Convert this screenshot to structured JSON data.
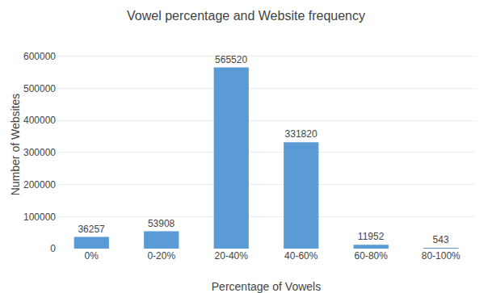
{
  "chart_data": {
    "type": "bar",
    "title": "Vowel percentage and Website frequency",
    "xlabel": "Percentage of Vowels",
    "ylabel": "Number of Websites",
    "categories": [
      "0%",
      "0-20%",
      "20-40%",
      "40-60%",
      "60-80%",
      "80-100%"
    ],
    "values": [
      36257,
      53908,
      565520,
      331820,
      11952,
      543
    ],
    "color": "#5b9bd5",
    "ylim": [
      0,
      650000
    ],
    "yticks": [
      0,
      100000,
      200000,
      300000,
      400000,
      500000,
      600000
    ],
    "grid": true,
    "data_labels": true
  }
}
